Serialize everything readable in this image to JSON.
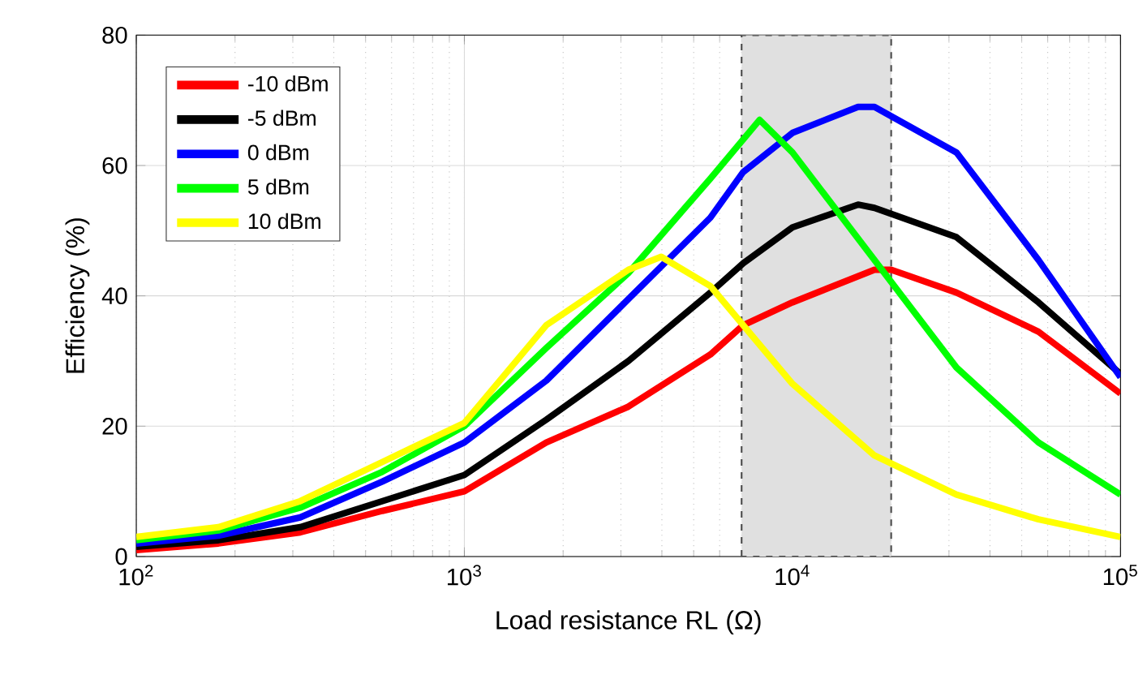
{
  "chart_data": {
    "type": "line",
    "xlabel": "Load resistance RL (Ω)",
    "ylabel": "Efficiency (%)",
    "log": "x",
    "xlim": [
      100,
      100000
    ],
    "ylim": [
      0,
      80
    ],
    "xticks": [
      {
        "value": 100,
        "label": "10$^{2}$"
      },
      {
        "value": 1000,
        "label": "10$^{3}$"
      },
      {
        "value": 10000,
        "label": "10$^{4}$"
      },
      {
        "value": 100000,
        "label": "10$^{5}$"
      }
    ],
    "yticks": [
      0,
      20,
      40,
      60,
      80
    ],
    "grid": true,
    "legend": "top left",
    "line_style": "solid",
    "marker": "none",
    "bands": [
      {
        "axis": "x",
        "from": 7000,
        "to": 20000,
        "color": "#e0e0e0"
      }
    ],
    "series": [
      {
        "name": "-10 dBm",
        "color": "#ff0000",
        "x": [
          100,
          178,
          316,
          562,
          1000,
          1778,
          3162,
          5623,
          7079,
          10000,
          17783,
          20000,
          31623,
          56234,
          100000
        ],
        "values": [
          1,
          2,
          3.7,
          7,
          10,
          17.5,
          23,
          31,
          35.5,
          39,
          44,
          44,
          40.5,
          34.5,
          25
        ]
      },
      {
        "name": "-5 dBm",
        "color": "#000000",
        "x": [
          100,
          178,
          316,
          562,
          1000,
          1778,
          3162,
          5623,
          7079,
          10000,
          15849,
          17783,
          31623,
          56234,
          100000
        ],
        "values": [
          1.5,
          2.5,
          4.5,
          8.5,
          12.5,
          21,
          30,
          40.5,
          45,
          50.5,
          54,
          53.5,
          49,
          39,
          28
        ]
      },
      {
        "name": "0 dBm",
        "color": "#0000ff",
        "x": [
          100,
          178,
          316,
          562,
          1000,
          1778,
          3162,
          5623,
          7079,
          10000,
          15849,
          17783,
          31623,
          56234,
          100000
        ],
        "values": [
          2,
          3.2,
          6,
          11.5,
          17.5,
          27,
          39.5,
          52,
          59,
          65,
          69,
          69,
          62,
          45.5,
          27.5
        ]
      },
      {
        "name": "5 dBm",
        "color": "#00ff00",
        "x": [
          100,
          178,
          316,
          562,
          1000,
          1778,
          3162,
          5623,
          7943,
          10000,
          17783,
          31623,
          56234,
          100000
        ],
        "values": [
          2.5,
          4,
          7.5,
          13,
          20,
          32,
          43.5,
          58,
          67,
          62,
          45.5,
          29,
          17.5,
          9.5
        ]
      },
      {
        "name": "10 dBm",
        "color": "#ffff00",
        "x": [
          100,
          178,
          316,
          562,
          1000,
          1778,
          3162,
          3981,
          5623,
          10000,
          17783,
          31623,
          56234,
          100000
        ],
        "values": [
          3,
          4.5,
          8.5,
          14.5,
          20.5,
          35.5,
          44,
          46,
          41.5,
          26.5,
          15.5,
          9.5,
          5.7,
          3
        ]
      }
    ]
  }
}
